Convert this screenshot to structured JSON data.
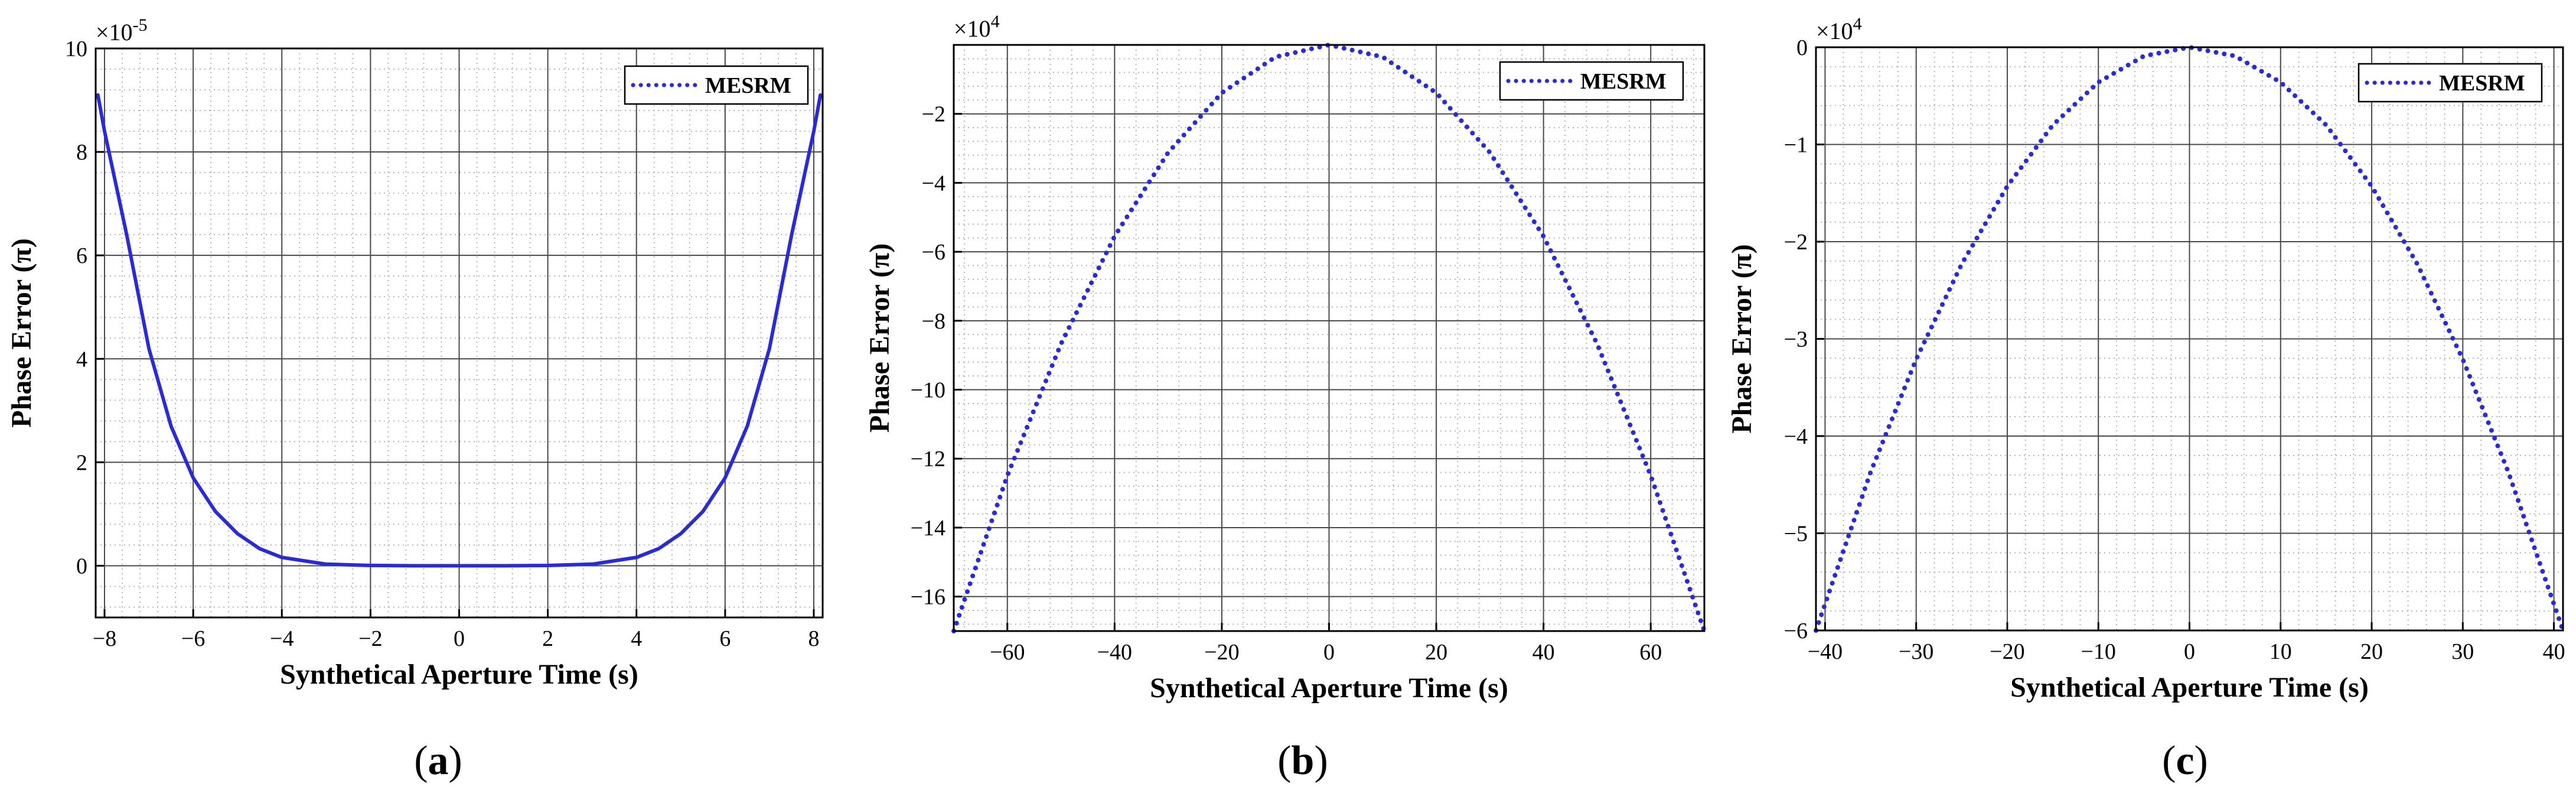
{
  "chart_data": [
    {
      "type": "line",
      "xlabel": "Synthetical Aperture Time (s)",
      "ylabel": "Phase Error (π)",
      "y_multiplier": "×10",
      "y_multiplier_exp": "-5",
      "xlim": [
        -8.2,
        8.2
      ],
      "ylim": [
        -1,
        10
      ],
      "xticks": [
        -8,
        -6,
        -4,
        -2,
        0,
        2,
        4,
        6,
        8
      ],
      "yticks": [
        0,
        2,
        4,
        6,
        8,
        10
      ],
      "grid": true,
      "legend": "top-right",
      "line_style": "solid",
      "color": "#2a2ad6",
      "series": [
        {
          "name": "MESRM",
          "x": [
            -8.15,
            -8,
            -7.5,
            -7,
            -6.5,
            -6,
            -5.5,
            -5,
            -4.5,
            -4,
            -3,
            -2,
            -1,
            0,
            1,
            2,
            3,
            4,
            4.5,
            5,
            5.5,
            6,
            6.5,
            7,
            7.5,
            8,
            8.15
          ],
          "y": [
            9.1,
            8.4,
            6.4,
            4.2,
            2.7,
            1.7,
            1.05,
            0.62,
            0.33,
            0.16,
            0.03,
            0.005,
            0.0,
            0.0,
            0.0,
            0.005,
            0.03,
            0.16,
            0.33,
            0.62,
            1.05,
            1.7,
            2.7,
            4.2,
            6.4,
            8.4,
            9.1
          ]
        }
      ],
      "caption": "(a)",
      "caption_letter": "a"
    },
    {
      "type": "line",
      "xlabel": "Synthetical Aperture Time (s)",
      "ylabel": "Phase Error (π)",
      "y_multiplier": "×10",
      "y_multiplier_exp": "4",
      "xlim": [
        -70,
        70
      ],
      "ylim": [
        -17,
        0
      ],
      "xticks": [
        -60,
        -40,
        -20,
        0,
        20,
        40,
        60
      ],
      "yticks": [
        -16,
        -14,
        -12,
        -10,
        -8,
        -6,
        -4,
        -2
      ],
      "grid": true,
      "legend": "top-right",
      "line_style": "dotted",
      "color": "#2a2ad6",
      "series": [
        {
          "name": "MESRM",
          "x": [
            -70,
            -60,
            -50,
            -40,
            -30,
            -20,
            -10,
            0,
            10,
            20,
            30,
            40,
            50,
            60,
            70
          ],
          "y": [
            -17,
            -12.49,
            -8.67,
            -5.55,
            -3.12,
            -1.39,
            -0.35,
            0,
            -0.35,
            -1.39,
            -3.12,
            -5.55,
            -8.67,
            -12.49,
            -17
          ]
        }
      ],
      "caption": "(b)",
      "caption_letter": "b"
    },
    {
      "type": "line",
      "xlabel": "Synthetical Aperture Time (s)",
      "ylabel": "Phase Error (π)",
      "y_multiplier": "×10",
      "y_multiplier_exp": "4",
      "xlim": [
        -41,
        41
      ],
      "ylim": [
        -6,
        0
      ],
      "xticks": [
        -40,
        -30,
        -20,
        -10,
        0,
        10,
        20,
        30,
        40
      ],
      "yticks": [
        -6,
        -5,
        -4,
        -3,
        -2,
        -1,
        0
      ],
      "grid": true,
      "legend": "top-right",
      "line_style": "dotted",
      "color": "#2a2ad6",
      "series": [
        {
          "name": "MESRM",
          "x": [
            -41,
            -35,
            -30,
            -25,
            -20,
            -15,
            -10,
            -5,
            0,
            5,
            10,
            15,
            20,
            25,
            30,
            35,
            41
          ],
          "y": [
            -6,
            -4.37,
            -3.21,
            -2.23,
            -1.43,
            -0.8,
            -0.36,
            -0.09,
            0,
            -0.09,
            -0.36,
            -0.8,
            -1.43,
            -2.23,
            -3.21,
            -4.37,
            -6
          ]
        }
      ],
      "caption": "(c)",
      "caption_letter": "c"
    }
  ]
}
